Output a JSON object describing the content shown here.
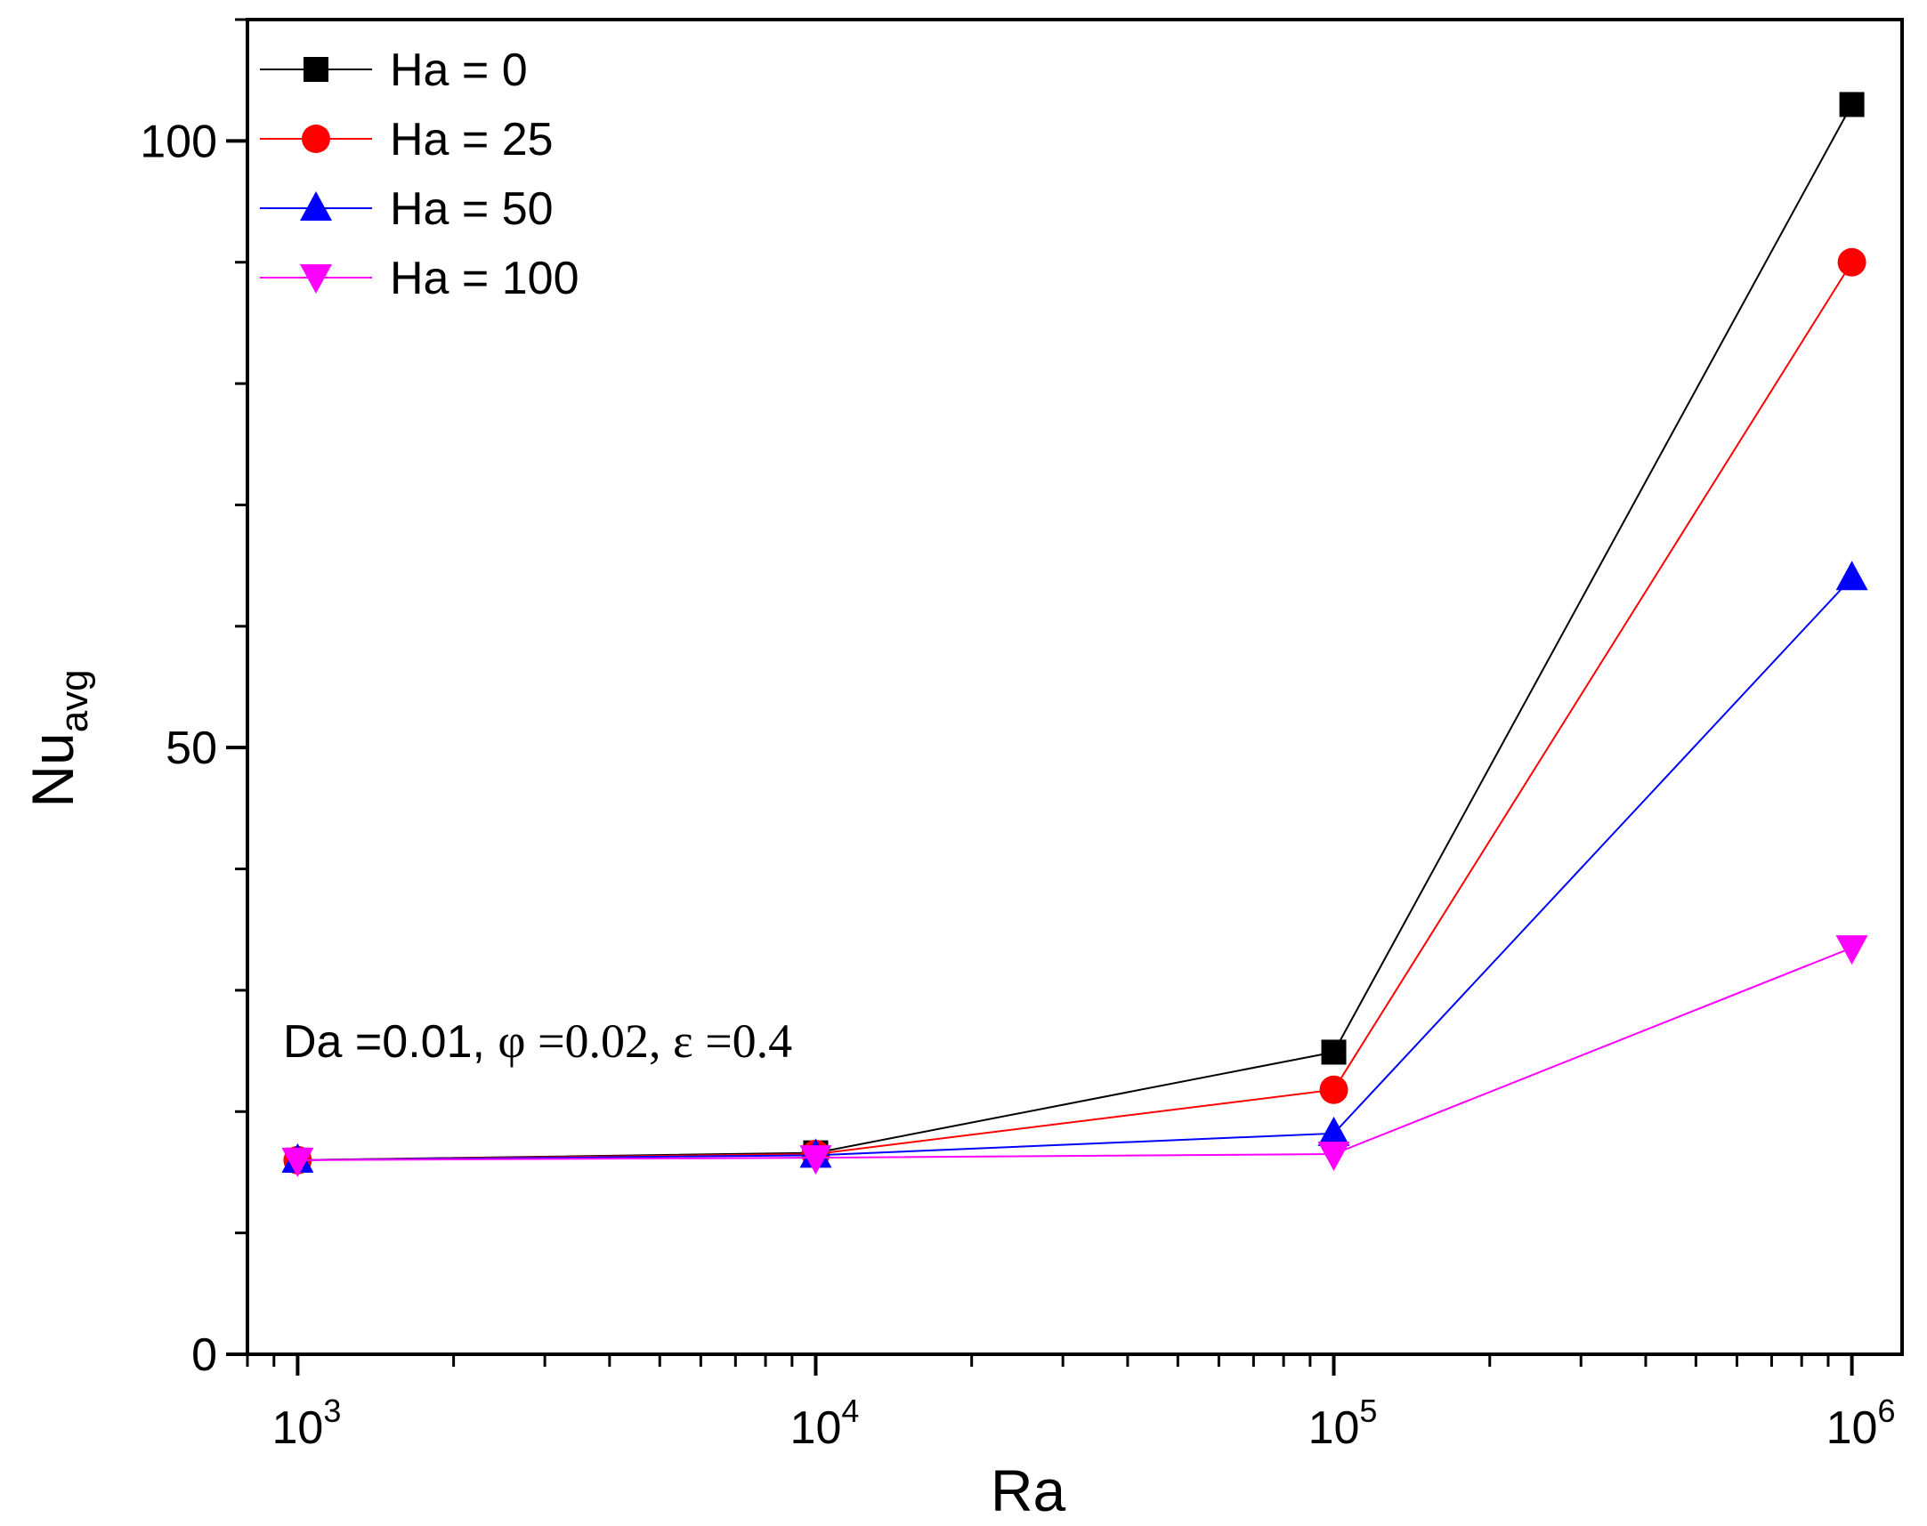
{
  "chart_data": {
    "type": "line",
    "x_scale": "log",
    "x": [
      1000,
      10000,
      100000,
      1000000
    ],
    "xlim": [
      800,
      1250000
    ],
    "ylim": [
      0,
      110
    ],
    "x_ticks": [
      {
        "base": "10",
        "exp": "3"
      },
      {
        "base": "10",
        "exp": "4"
      },
      {
        "base": "10",
        "exp": "5"
      },
      {
        "base": "10",
        "exp": "6"
      }
    ],
    "y_ticks": [
      "0",
      "50",
      "100"
    ],
    "y_tick_values": [
      0,
      50,
      100
    ],
    "xlabel": "Ra",
    "ylabel": {
      "main": "Nu",
      "sub": "avg"
    },
    "legend_position": "top-left",
    "series": [
      {
        "name": "Ha = 0",
        "marker": "square",
        "color": "#000000",
        "values": [
          16.0,
          16.6,
          24.9,
          103.0
        ]
      },
      {
        "name": "Ha = 25",
        "marker": "circle",
        "color": "#ff0000",
        "values": [
          16.0,
          16.5,
          21.8,
          90.0
        ]
      },
      {
        "name": "Ha = 50",
        "marker": "triangle-up",
        "color": "#0000ff",
        "values": [
          16.0,
          16.4,
          18.2,
          64.0
        ]
      },
      {
        "name": "Ha = 100",
        "marker": "triangle-down",
        "color": "#ff00ff",
        "values": [
          16.0,
          16.2,
          16.5,
          33.5
        ]
      }
    ],
    "annotation": {
      "prefix": "Da =0.01, ",
      "phi": "φ",
      "phi_value": " =0.02, ",
      "eps": "ε",
      "eps_value": " =0.4"
    }
  }
}
